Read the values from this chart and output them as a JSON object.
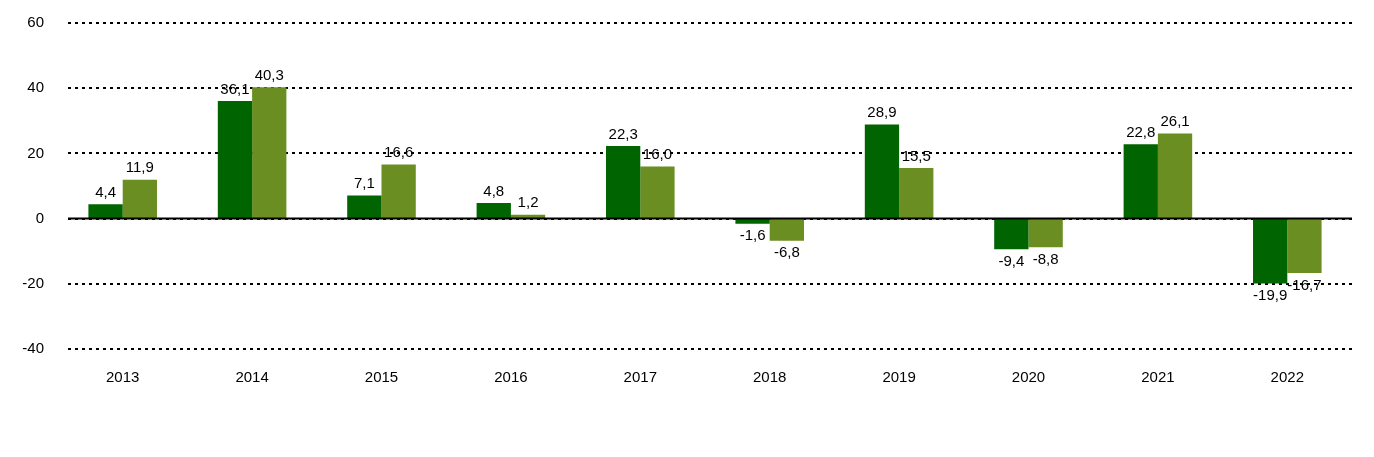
{
  "chart_data": {
    "type": "bar",
    "categories": [
      "2013",
      "2014",
      "2015",
      "2016",
      "2017",
      "2018",
      "2019",
      "2020",
      "2021",
      "2022"
    ],
    "series": [
      {
        "color": "#006400",
        "values": [
          4.4,
          36.1,
          7.1,
          4.8,
          22.3,
          -1.6,
          28.9,
          -9.4,
          22.8,
          -19.9
        ],
        "value_labels": [
          "4,4",
          "36,1",
          "7,1",
          "4,8",
          "22,3",
          "-1,6",
          "28,9",
          "-9,4",
          "22,8",
          "-19,9"
        ]
      },
      {
        "color": "#6b8e23",
        "values": [
          11.9,
          40.3,
          16.6,
          1.2,
          16.0,
          -6.8,
          15.5,
          -8.8,
          26.1,
          -16.7
        ],
        "value_labels": [
          "11,9",
          "40,3",
          "16,6",
          "1,2",
          "16,0",
          "-6,8",
          "15,5",
          "-8,8",
          "26,1",
          "-16,7"
        ]
      }
    ],
    "ylim": [
      -40,
      60
    ],
    "yticks": [
      -40,
      -20,
      0,
      20,
      40,
      60
    ],
    "grid": "y"
  }
}
